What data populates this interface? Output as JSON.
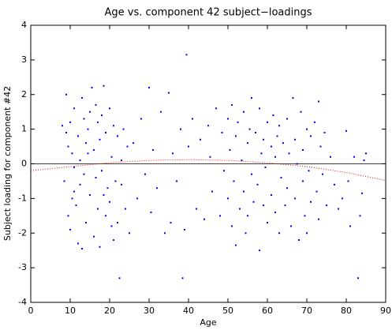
{
  "chart_data": {
    "type": "scatter",
    "title": "Age vs. component 42 subject−loadings",
    "x_label": "Age",
    "y_label": "Subject loading for component #42",
    "xlim": [
      0,
      90
    ],
    "ylim": [
      -4,
      4
    ],
    "xticks": [
      0,
      10,
      20,
      30,
      40,
      50,
      60,
      70,
      80,
      90
    ],
    "yticks": [
      -4,
      -3,
      -2,
      -1,
      0,
      1,
      2,
      3,
      4
    ],
    "hline": 0,
    "series": [
      {
        "color": "#0000ff",
        "style": "dots",
        "x": [
          8,
          8.5,
          9,
          9,
          9.5,
          10,
          10,
          10.5,
          11,
          11,
          11.5,
          12,
          12,
          12.5,
          13,
          13,
          13.5,
          14,
          14,
          14.5,
          15,
          15,
          15.5,
          16,
          16,
          16.5,
          17,
          17,
          17.5,
          18,
          18,
          18.5,
          19,
          19,
          19.5,
          20,
          20,
          20.5,
          21,
          21,
          21.5,
          22,
          22,
          22.5,
          23,
          23,
          23.5,
          24,
          24.5,
          25,
          9.5,
          10.5,
          12.5,
          14.5,
          16.5,
          18.5,
          20.5,
          11,
          13.5,
          17.5,
          26,
          27,
          28,
          29,
          30,
          30.5,
          31,
          32,
          33,
          34,
          35,
          35.5,
          36,
          37,
          38,
          38.5,
          39,
          39.5,
          40,
          41,
          42,
          43,
          44,
          45,
          45.5,
          46,
          47,
          48,
          48.5,
          49,
          50,
          50,
          50.5,
          51,
          51,
          51.5,
          52,
          52,
          52.5,
          53,
          53.5,
          54,
          54,
          54.5,
          55,
          55,
          55.5,
          56,
          56,
          56.5,
          57,
          57.5,
          58,
          58,
          58.5,
          59,
          59,
          59.5,
          60,
          60,
          61,
          61,
          61.5,
          62,
          62,
          62.5,
          63,
          63,
          63.5,
          64,
          64.5,
          65,
          65,
          65.5,
          66,
          66.5,
          67,
          67,
          67.5,
          68,
          68.5,
          69,
          69,
          69.5,
          70,
          70,
          70.5,
          71,
          71,
          72,
          72.5,
          73,
          73,
          73.5,
          74,
          74.5,
          75,
          76,
          77,
          78,
          80,
          80.5,
          81,
          82,
          83,
          83.5,
          84,
          84.5,
          85,
          79
        ],
        "values": [
          1.1,
          -0.5,
          2.0,
          0.9,
          -1.5,
          1.2,
          -1.9,
          0.3,
          -0.8,
          1.6,
          -1.2,
          0.8,
          -2.3,
          0.1,
          -2.45,
          1.9,
          -0.3,
          0.6,
          -1.7,
          1.0,
          -0.9,
          1.5,
          2.2,
          0.4,
          -2.1,
          -0.4,
          1.2,
          -1.3,
          0.7,
          -0.2,
          1.4,
          2.25,
          -1.5,
          0.9,
          -0.7,
          1.6,
          -1.1,
          0.2,
          1.1,
          -2.2,
          -0.5,
          0.8,
          -1.7,
          -3.3,
          0.1,
          -0.6,
          1.0,
          -1.3,
          0.5,
          -2.0,
          0.5,
          -1.0,
          -0.6,
          0.3,
          1.7,
          -0.9,
          -1.8,
          -0.1,
          1.3,
          -2.4,
          0.6,
          -1.0,
          1.3,
          -0.3,
          2.2,
          -1.4,
          0.4,
          -0.7,
          1.5,
          -2.0,
          2.05,
          -1.7,
          0.3,
          -0.5,
          1.0,
          -3.3,
          -1.9,
          3.15,
          0.5,
          1.3,
          -1.3,
          0.7,
          -1.6,
          1.1,
          0.2,
          -0.8,
          1.6,
          -1.5,
          0.9,
          -0.2,
          1.3,
          -1.0,
          0.4,
          -1.8,
          1.7,
          -0.5,
          -2.35,
          0.8,
          1.2,
          -1.3,
          0.1,
          1.5,
          -0.8,
          -2.0,
          0.6,
          -1.5,
          1.0,
          -0.3,
          1.9,
          -1.1,
          0.9,
          -0.6,
          -2.5,
          1.6,
          0.3,
          -1.2,
          0.7,
          -0.1,
          1.2,
          -1.7,
          0.5,
          -0.9,
          1.4,
          -1.4,
          0.2,
          0.8,
          -2.0,
          1.1,
          -0.4,
          0.6,
          -1.2,
          1.3,
          -0.7,
          0.3,
          -1.8,
          1.9,
          0.7,
          -1.0,
          0.0,
          -2.2,
          1.5,
          -0.5,
          0.4,
          -1.5,
          1.0,
          -2.0,
          -0.2,
          0.8,
          -1.1,
          1.2,
          -0.8,
          1.8,
          -1.6,
          0.5,
          -0.3,
          0.9,
          -1.2,
          0.2,
          -0.6,
          -1.3,
          0.95,
          -0.5,
          -1.8,
          0.2,
          -3.3,
          -1.5,
          -0.85,
          0.1,
          0.3,
          -1.0
        ]
      },
      {
        "color": "#ff0000",
        "style": "dotted-line",
        "x": [
          0,
          10,
          20,
          30,
          40,
          50,
          60,
          70,
          80,
          90
        ],
        "values": [
          -0.2,
          -0.08,
          0.03,
          0.1,
          0.12,
          0.1,
          0.03,
          -0.08,
          -0.25,
          -0.48
        ]
      }
    ]
  }
}
